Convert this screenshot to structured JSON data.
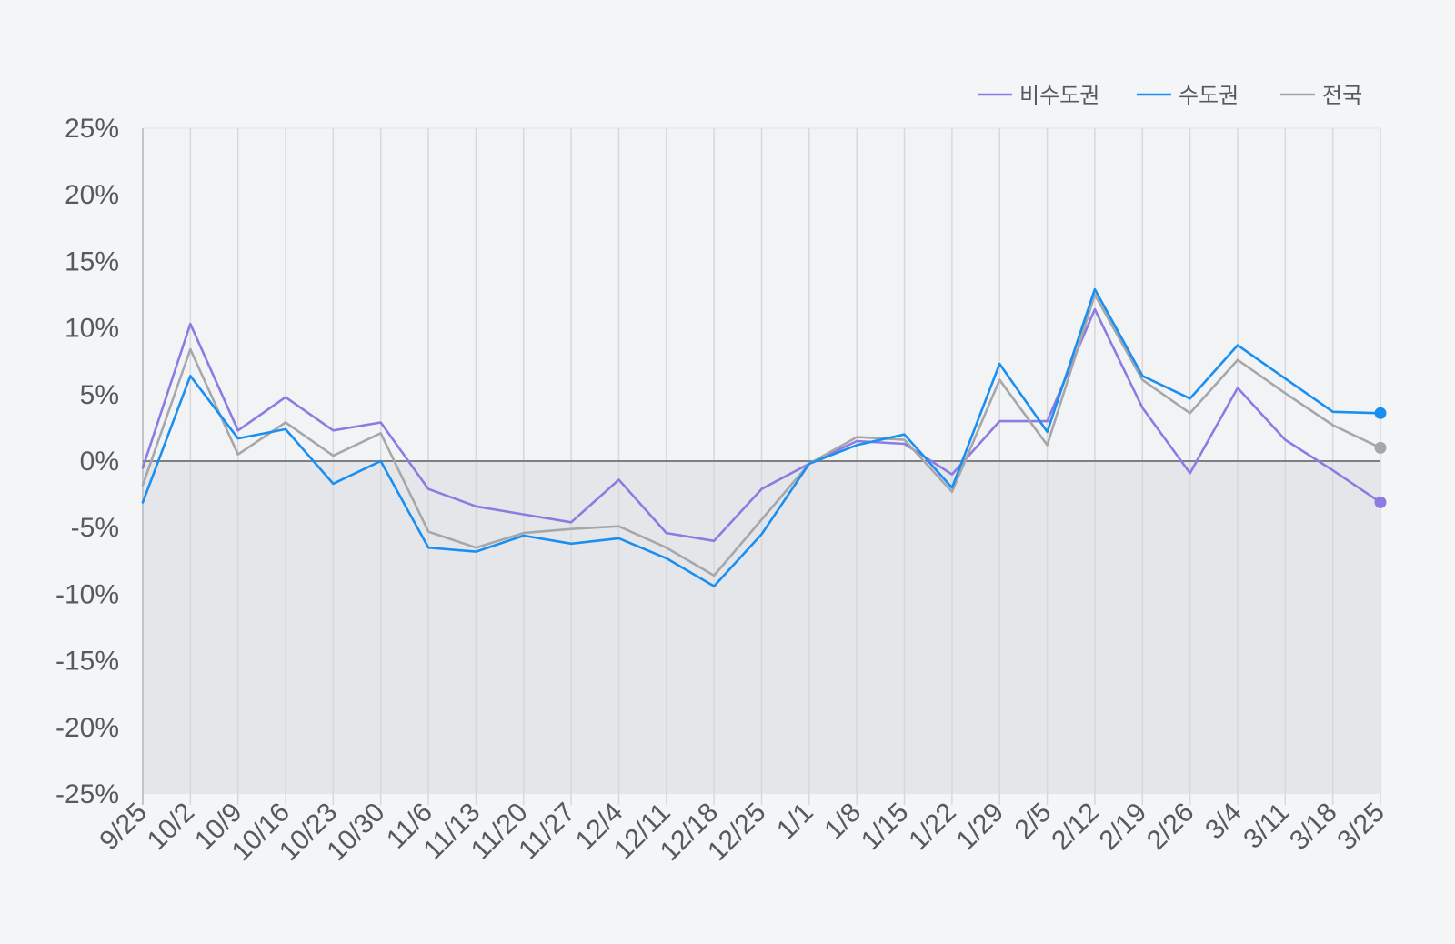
{
  "chart_data": {
    "type": "line",
    "x": [
      "9/25",
      "10/2",
      "10/9",
      "10/16",
      "10/23",
      "10/30",
      "11/6",
      "11/13",
      "11/20",
      "11/27",
      "12/4",
      "12/11",
      "12/18",
      "12/25",
      "1/1",
      "1/8",
      "1/15",
      "1/22",
      "1/29",
      "2/5",
      "2/12",
      "2/19",
      "2/26",
      "3/4",
      "3/11",
      "3/18",
      "3/25"
    ],
    "ylim": [
      -25,
      25
    ],
    "yticks": [
      25,
      20,
      15,
      10,
      5,
      0,
      -5,
      -10,
      -15,
      -20,
      -25
    ],
    "ytick_labels": [
      "25%",
      "20%",
      "15%",
      "10%",
      "5%",
      "0%",
      "-5%",
      "-10%",
      "-15%",
      "-20%",
      "-25%"
    ],
    "grid": "vertical",
    "negative_region_shaded": true,
    "legend_position": "top-right",
    "series": [
      {
        "name": "비수도권",
        "color": "#8c7be3",
        "values": [
          -0.5,
          10.3,
          2.3,
          4.8,
          2.3,
          2.9,
          -2.1,
          -3.4,
          -4.0,
          -4.6,
          -1.4,
          -5.4,
          -6.0,
          -2.1,
          -0.2,
          1.5,
          1.3,
          -1.0,
          3.0,
          3.0,
          11.4,
          4.0,
          -0.9,
          5.5,
          1.6,
          -0.7,
          -3.1
        ]
      },
      {
        "name": "수도권",
        "color": "#1a8ff2",
        "values": [
          -3.1,
          6.4,
          1.7,
          2.4,
          -1.7,
          0.0,
          -6.5,
          -6.8,
          -5.6,
          -6.2,
          -5.8,
          -7.3,
          -9.4,
          -5.5,
          -0.2,
          1.2,
          2.0,
          -2.0,
          7.3,
          2.2,
          12.9,
          6.4,
          4.7,
          8.7,
          6.2,
          3.7,
          3.6
        ]
      },
      {
        "name": "전국",
        "color": "#a6a7aa",
        "values": [
          -1.8,
          8.4,
          0.5,
          2.9,
          0.4,
          2.1,
          -5.3,
          -6.5,
          -5.4,
          -5.1,
          -4.9,
          -6.5,
          -8.6,
          -4.4,
          -0.2,
          1.8,
          1.6,
          -2.3,
          6.1,
          1.2,
          12.5,
          6.1,
          3.6,
          7.6,
          5.1,
          2.7,
          1.0
        ]
      }
    ]
  }
}
